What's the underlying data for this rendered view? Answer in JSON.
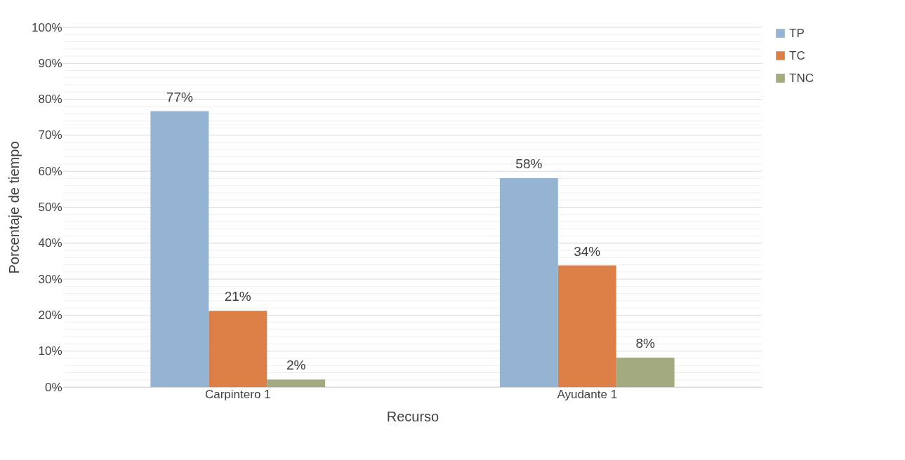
{
  "chart_data": {
    "type": "bar",
    "xlabel": "Recurso",
    "ylabel": "Porcentaje de tiempo",
    "categories": [
      "Carpintero 1",
      "Ayudante 1"
    ],
    "series": [
      {
        "name": "TP",
        "color": "#95b3d2",
        "values": [
          76.7,
          58.1
        ],
        "value_labels": [
          "77%",
          "58%"
        ]
      },
      {
        "name": "TC",
        "color": "#dd8048",
        "values": [
          21.2,
          33.8
        ],
        "value_labels": [
          "21%",
          "34%"
        ]
      },
      {
        "name": "TNC",
        "color": "#a4aa7f",
        "values": [
          2.1,
          8.2
        ],
        "value_labels": [
          "2%",
          "8%"
        ]
      }
    ],
    "ylim": [
      0,
      100
    ],
    "yticks": [
      {
        "value": 0,
        "label": "0%"
      },
      {
        "value": 2,
        "label": null
      },
      {
        "value": 4,
        "label": null
      },
      {
        "value": 6,
        "label": null
      },
      {
        "value": 8,
        "label": null
      },
      {
        "value": 10,
        "label": "10%"
      },
      {
        "value": 12,
        "label": null
      },
      {
        "value": 14,
        "label": null
      },
      {
        "value": 16,
        "label": null
      },
      {
        "value": 18,
        "label": null
      },
      {
        "value": 20,
        "label": "20%"
      },
      {
        "value": 22,
        "label": null
      },
      {
        "value": 24,
        "label": null
      },
      {
        "value": 26,
        "label": null
      },
      {
        "value": 28,
        "label": null
      },
      {
        "value": 30,
        "label": "30%"
      },
      {
        "value": 32,
        "label": null
      },
      {
        "value": 34,
        "label": null
      },
      {
        "value": 36,
        "label": null
      },
      {
        "value": 38,
        "label": null
      },
      {
        "value": 40,
        "label": "40%"
      },
      {
        "value": 42,
        "label": null
      },
      {
        "value": 44,
        "label": null
      },
      {
        "value": 46,
        "label": null
      },
      {
        "value": 48,
        "label": null
      },
      {
        "value": 50,
        "label": "50%"
      },
      {
        "value": 52,
        "label": null
      },
      {
        "value": 54,
        "label": null
      },
      {
        "value": 56,
        "label": null
      },
      {
        "value": 58,
        "label": null
      },
      {
        "value": 60,
        "label": "60%"
      },
      {
        "value": 62,
        "label": null
      },
      {
        "value": 64,
        "label": null
      },
      {
        "value": 66,
        "label": null
      },
      {
        "value": 68,
        "label": null
      },
      {
        "value": 70,
        "label": "70%"
      },
      {
        "value": 72,
        "label": null
      },
      {
        "value": 74,
        "label": null
      },
      {
        "value": 76,
        "label": null
      },
      {
        "value": 78,
        "label": null
      },
      {
        "value": 80,
        "label": "80%"
      },
      {
        "value": 82,
        "label": null
      },
      {
        "value": 84,
        "label": null
      },
      {
        "value": 86,
        "label": null
      },
      {
        "value": 88,
        "label": null
      },
      {
        "value": 90,
        "label": "90%"
      },
      {
        "value": 92,
        "label": null
      },
      {
        "value": 94,
        "label": null
      },
      {
        "value": 96,
        "label": null
      },
      {
        "value": 98,
        "label": null
      },
      {
        "value": 100,
        "label": "100%"
      }
    ],
    "grid": "y",
    "legend": "right"
  }
}
